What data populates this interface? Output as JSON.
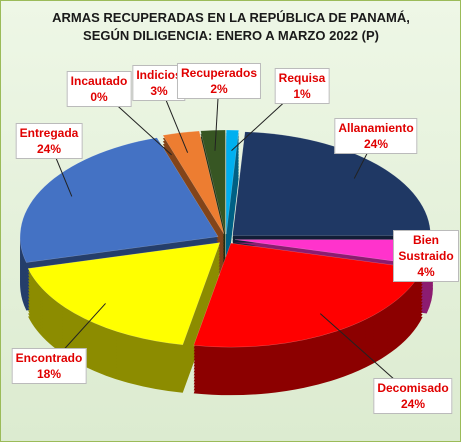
{
  "chart_data": {
    "type": "pie",
    "title": "ARMAS RECUPERADAS EN LA REPÚBLICA DE PANAMÁ, SEGÚN DILIGENCIA: ENERO A MARZO 2022 (P)",
    "categories": [
      "Requisa",
      "Allanamiento",
      "Bien Sustraido",
      "Decomisado",
      "Encontrado",
      "Entregada",
      "Incautado",
      "Indicios",
      "Recuperados"
    ],
    "values": [
      1,
      24,
      4,
      24,
      18,
      24,
      0,
      3,
      2
    ],
    "value_labels": [
      "1%",
      "24%",
      "4%",
      "24%",
      "18%",
      "24%",
      "0%",
      "3%",
      "2%"
    ],
    "colors": [
      "#00b0f0",
      "#1f3864",
      "#ff33cc",
      "#ff0000",
      "#ffff00",
      "#4472c4",
      "#a5a5a5",
      "#ed7d31",
      "#375623"
    ]
  }
}
